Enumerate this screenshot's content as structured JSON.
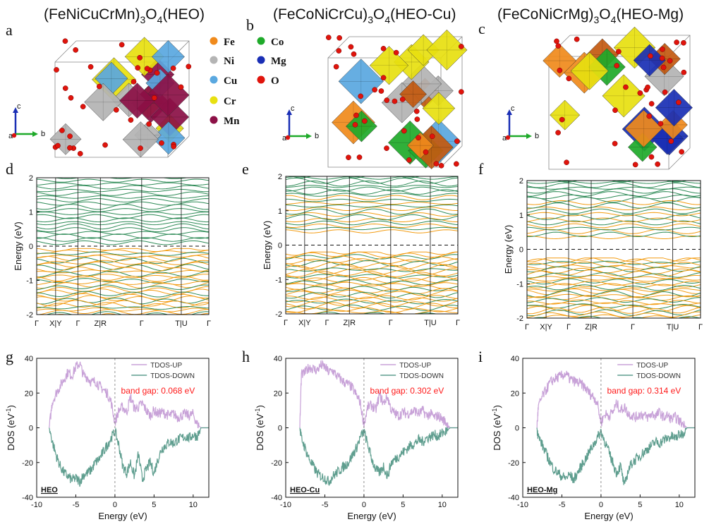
{
  "figure": {
    "titles": [
      {
        "main": "(FeNiCuCrMn)",
        "sub": "3",
        "o": "O",
        "sub2": "4",
        "tail": "(HEO)"
      },
      {
        "main": "(FeCoNiCrCu)",
        "sub": "3",
        "o": "O",
        "sub2": "4",
        "tail": "(HEO-Cu)"
      },
      {
        "main": "(FeCoNiCrMg)",
        "sub": "3",
        "o": "O",
        "sub2": "4",
        "tail": "(HEO-Mg)"
      }
    ],
    "panel_letters": [
      "a",
      "b",
      "c",
      "d",
      "e",
      "f",
      "g",
      "h",
      "i"
    ],
    "element_legend": [
      {
        "label": "Fe",
        "color": "#f08a1c"
      },
      {
        "label": "Co",
        "color": "#1faa2a"
      },
      {
        "label": "Ni",
        "color": "#b4b4b4"
      },
      {
        "label": "Mg",
        "color": "#1a2fb5"
      },
      {
        "label": "Cu",
        "color": "#5aa8e0"
      },
      {
        "label": "O",
        "color": "#e0140c"
      },
      {
        "label": "Cr",
        "color": "#e8e010"
      },
      {
        "label": "Mn",
        "color": "#8c1046"
      }
    ],
    "axis_triad": {
      "c": "c",
      "b": "b",
      "a": "a"
    }
  },
  "chart_data": [
    {
      "type": "line",
      "panel": "d",
      "subtype": "band-structure",
      "ylabel": "Energy (eV)",
      "ylim": [
        -2,
        2
      ],
      "yticks": [
        -2,
        -1,
        0,
        1,
        2
      ],
      "kpath_labels": [
        "Γ",
        "X|Y",
        "Γ",
        "Z|R",
        "Γ",
        "T|U",
        "Γ"
      ],
      "fermi_level": 0,
      "valence_band_max": -0.07,
      "conduction_band_min": 0.0,
      "series": [
        {
          "name": "",
          "color": "#f39c12",
          "role": "valence"
        },
        {
          "name": "",
          "color": "#2e8b57",
          "role": "spin-down"
        }
      ]
    },
    {
      "type": "line",
      "panel": "e",
      "subtype": "band-structure",
      "ylabel": "Energy (eV)",
      "ylim": [
        -2,
        2
      ],
      "yticks": [
        -2,
        -1,
        0,
        1,
        2
      ],
      "kpath_labels": [
        "Γ",
        "X|Y",
        "Γ",
        "Z|R",
        "Γ",
        "T|U",
        "Γ"
      ],
      "fermi_level": 0,
      "valence_band_max": -0.2,
      "conduction_band_min": 0.3
    },
    {
      "type": "line",
      "panel": "f",
      "subtype": "band-structure",
      "ylabel": "Energy (eV)",
      "ylim": [
        -2,
        2
      ],
      "yticks": [
        -2,
        -1,
        0,
        1,
        2
      ],
      "kpath_labels": [
        "Γ",
        "X|Y",
        "Γ",
        "Z|R",
        "Γ",
        "T|U",
        "Γ"
      ],
      "fermi_level": 0,
      "valence_band_max": -0.25,
      "conduction_band_min": 0.25
    },
    {
      "type": "line",
      "panel": "g",
      "subtype": "dos",
      "xlabel": "Energy (eV)",
      "ylabel": "DOS (eV",
      "ylabel_sup": "-1",
      "ylabel_tail": ")",
      "xlim": [
        -10,
        12
      ],
      "ylim": [
        -40,
        40
      ],
      "xticks": [
        -10,
        -5,
        0,
        5,
        10
      ],
      "yticks": [
        -40,
        -20,
        0,
        20,
        40
      ],
      "series": [
        {
          "name": "TDOS-UP",
          "color": "#c8a2d8",
          "x": [
            -8.4,
            -8,
            -7.5,
            -7,
            -6.5,
            -6,
            -5.5,
            -5,
            -4.5,
            -4,
            -3.5,
            -3,
            -2.5,
            -2,
            -1.5,
            -1,
            -0.5,
            0,
            0.5,
            1,
            1.5,
            2,
            2.5,
            3,
            3.5,
            4,
            4.5,
            5,
            5.5,
            6,
            6.5,
            7,
            7.5,
            8,
            8.5,
            9,
            9.5,
            10,
            10.5,
            11,
            11.5
          ],
          "values": [
            0,
            15,
            20,
            24,
            28,
            32,
            30,
            35,
            37,
            30,
            29,
            26,
            27,
            24,
            22,
            20,
            15,
            3,
            10,
            12,
            9,
            18,
            11,
            12,
            14,
            10,
            7,
            10,
            8,
            9,
            8,
            7,
            8,
            6,
            7,
            8,
            7,
            8,
            2,
            0,
            0
          ]
        },
        {
          "name": "TDOS-DOWN",
          "color": "#5f9e8f",
          "x": [
            -8.4,
            -8,
            -7.5,
            -7,
            -6.5,
            -6,
            -5.5,
            -5,
            -4.5,
            -4,
            -3.5,
            -3,
            -2.5,
            -2,
            -1.5,
            -1,
            -0.5,
            0,
            0.5,
            1,
            1.5,
            2,
            2.5,
            3,
            3.5,
            4,
            4.5,
            5,
            5.5,
            6,
            6.5,
            7,
            7.5,
            8,
            8.5,
            9,
            9.5,
            10,
            10.5,
            11,
            11.5
          ],
          "values": [
            0,
            -8,
            -16,
            -22,
            -26,
            -28,
            -30,
            -29,
            -31,
            -27,
            -26,
            -24,
            -20,
            -18,
            -14,
            -10,
            -6,
            -2,
            -10,
            -22,
            -26,
            -20,
            -28,
            -15,
            -30,
            -24,
            -20,
            -26,
            -18,
            -12,
            -10,
            -8,
            -9,
            -7,
            -6,
            -5,
            -6,
            -4,
            -5,
            0,
            0
          ]
        }
      ],
      "annotation": "band gap: 0.068 eV",
      "tag": "HEO"
    },
    {
      "type": "line",
      "panel": "h",
      "subtype": "dos",
      "xlabel": "Energy (eV)",
      "ylabel": "DOS (eV",
      "ylabel_sup": "-1",
      "ylabel_tail": ")",
      "xlim": [
        -10,
        12
      ],
      "ylim": [
        -40,
        40
      ],
      "xticks": [
        -10,
        -5,
        0,
        5,
        10
      ],
      "yticks": [
        -40,
        -20,
        0,
        20,
        40
      ],
      "series": [
        {
          "name": "TDOS-UP",
          "color": "#c8a2d8",
          "x": [
            -8.2,
            -8,
            -7.5,
            -7,
            -6.5,
            -6,
            -5.5,
            -5,
            -4.5,
            -4,
            -3.5,
            -3,
            -2.5,
            -2,
            -1.5,
            -1,
            -0.5,
            0,
            0.5,
            1,
            1.5,
            2,
            2.5,
            3,
            3.5,
            4,
            4.5,
            5,
            5.5,
            6,
            6.5,
            7,
            7.5,
            8,
            8.5,
            9,
            9.5,
            10,
            10.5,
            11,
            11.5
          ],
          "values": [
            0,
            30,
            32,
            35,
            34,
            33,
            36,
            35,
            32,
            33,
            30,
            28,
            26,
            25,
            23,
            19,
            15,
            2,
            12,
            13,
            10,
            19,
            14,
            18,
            10,
            8,
            7,
            9,
            8,
            9,
            10,
            8,
            10,
            7,
            8,
            6,
            7,
            5,
            3,
            0,
            0
          ]
        },
        {
          "name": "TDOS-DOWN",
          "color": "#5f9e8f",
          "x": [
            -8.2,
            -8,
            -7.5,
            -7,
            -6.5,
            -6,
            -5.5,
            -5,
            -4.5,
            -4,
            -3.5,
            -3,
            -2.5,
            -2,
            -1.5,
            -1,
            -0.5,
            0,
            0.5,
            1,
            1.5,
            2,
            2.5,
            3,
            3.5,
            4,
            4.5,
            5,
            5.5,
            6,
            6.5,
            7,
            7.5,
            8,
            8.5,
            9,
            9.5,
            10,
            10.5,
            11,
            11.5
          ],
          "values": [
            0,
            -6,
            -12,
            -18,
            -22,
            -26,
            -28,
            -29,
            -31,
            -28,
            -26,
            -24,
            -22,
            -20,
            -16,
            -12,
            -6,
            -2,
            -10,
            -18,
            -24,
            -26,
            -22,
            -28,
            -20,
            -18,
            -16,
            -14,
            -12,
            -10,
            -9,
            -7,
            -8,
            -6,
            -5,
            -4,
            -5,
            -3,
            -2,
            0,
            0
          ]
        }
      ],
      "annotation": "band gap: 0.302 eV",
      "tag": "HEO-Cu"
    },
    {
      "type": "line",
      "panel": "i",
      "subtype": "dos",
      "xlabel": "Energy (eV)",
      "ylabel": "DOS (eV",
      "ylabel_sup": "-1",
      "ylabel_tail": ")",
      "xlim": [
        -10,
        12
      ],
      "ylim": [
        -40,
        40
      ],
      "xticks": [
        -10,
        -5,
        0,
        5,
        10
      ],
      "yticks": [
        -40,
        -20,
        0,
        20,
        40
      ],
      "series": [
        {
          "name": "TDOS-UP",
          "color": "#c8a2d8",
          "x": [
            -8.2,
            -8,
            -7.5,
            -7,
            -6.5,
            -6,
            -5.5,
            -5,
            -4.5,
            -4,
            -3.5,
            -3,
            -2.5,
            -2,
            -1.5,
            -1,
            -0.5,
            0,
            0.5,
            1,
            1.5,
            2,
            2.5,
            3,
            3.5,
            4,
            4.5,
            5,
            5.5,
            6,
            6.5,
            7,
            7.5,
            8,
            8.5,
            9,
            9.5,
            10,
            10.5,
            11,
            11.5
          ],
          "values": [
            0,
            12,
            18,
            22,
            26,
            28,
            29,
            30,
            31,
            28,
            27,
            26,
            25,
            23,
            20,
            18,
            15,
            3,
            8,
            7,
            9,
            14,
            10,
            12,
            8,
            7,
            6,
            8,
            7,
            6,
            8,
            7,
            9,
            6,
            7,
            5,
            6,
            4,
            2,
            0,
            0
          ]
        },
        {
          "name": "TDOS-DOWN",
          "color": "#5f9e8f",
          "x": [
            -8.2,
            -8,
            -7.5,
            -7,
            -6.5,
            -6,
            -5.5,
            -5,
            -4.5,
            -4,
            -3.5,
            -3,
            -2.5,
            -2,
            -1.5,
            -1,
            -0.5,
            0,
            0.5,
            1,
            1.5,
            2,
            2.5,
            3,
            3.5,
            4,
            4.5,
            5,
            5.5,
            6,
            6.5,
            7,
            7.5,
            8,
            8.5,
            9,
            9.5,
            10,
            10.5,
            11,
            11.5
          ],
          "values": [
            0,
            -5,
            -10,
            -15,
            -20,
            -24,
            -26,
            -28,
            -29,
            -27,
            -30,
            -26,
            -22,
            -18,
            -14,
            -10,
            -6,
            -2,
            -8,
            -14,
            -20,
            -26,
            -22,
            -34,
            -24,
            -20,
            -18,
            -16,
            -14,
            -12,
            -10,
            -8,
            -9,
            -7,
            -6,
            -5,
            -6,
            -4,
            -3,
            0,
            0
          ]
        }
      ],
      "annotation": "band gap: 0.314 eV",
      "tag": "HEO-Mg"
    }
  ]
}
